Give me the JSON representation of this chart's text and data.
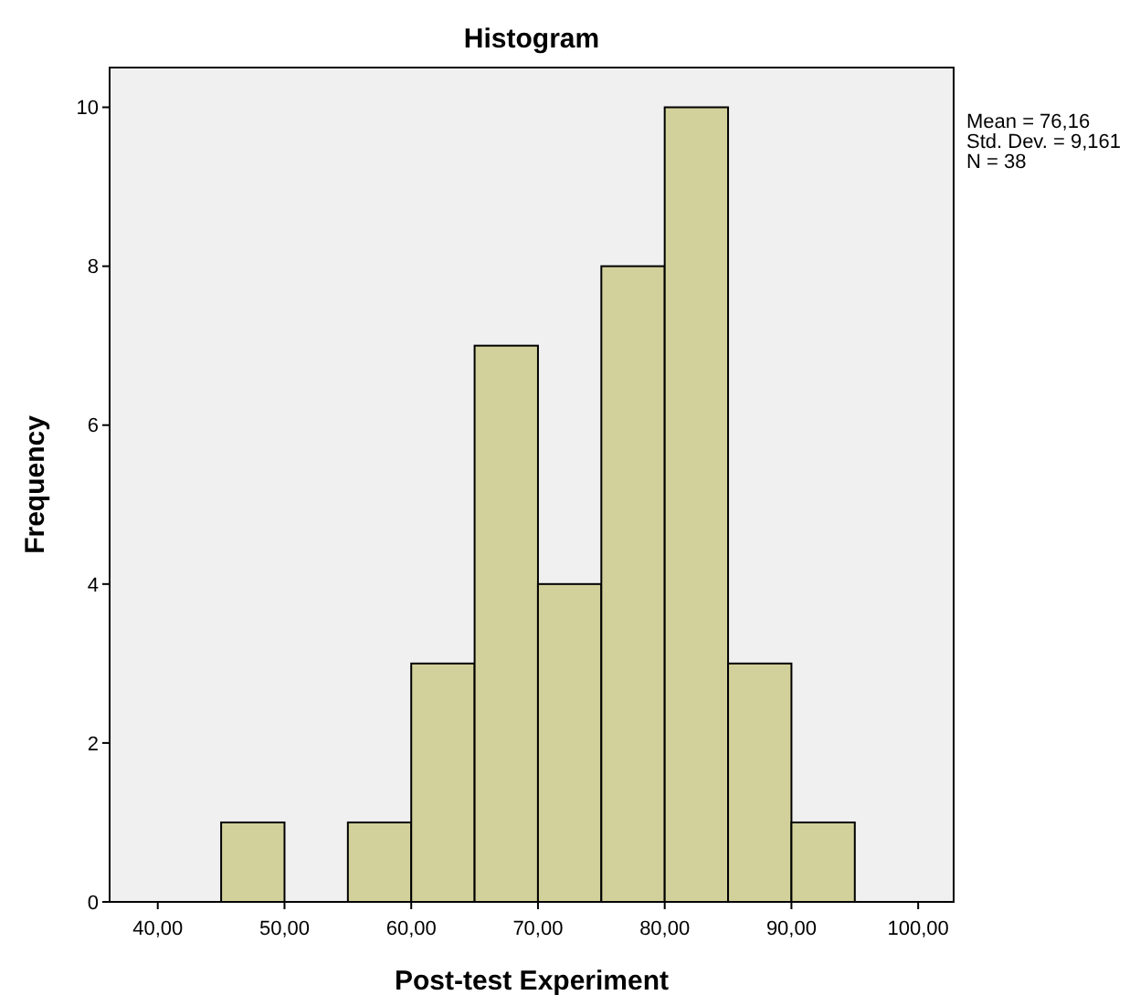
{
  "chart_data": {
    "type": "histogram",
    "title": "Histogram",
    "xlabel": "Post-test Experiment",
    "ylabel": "Frequency",
    "bins": [
      45,
      50,
      55,
      60,
      65,
      70,
      75,
      80,
      85,
      90,
      95
    ],
    "values": [
      1,
      0,
      1,
      3,
      7,
      4,
      8,
      10,
      3,
      1
    ],
    "color": "#d3d19b",
    "xlim": [
      36.2,
      102.8
    ],
    "xticks": [
      {
        "value": 40,
        "label": "40,00"
      },
      {
        "value": 50,
        "label": "50,00"
      },
      {
        "value": 60,
        "label": "60,00"
      },
      {
        "value": 70,
        "label": "70,00"
      },
      {
        "value": 80,
        "label": "80,00"
      },
      {
        "value": 90,
        "label": "90,00"
      },
      {
        "value": 100,
        "label": "100,00"
      }
    ],
    "ylim": [
      0,
      10.5
    ],
    "yticks": [
      0,
      2,
      4,
      6,
      8,
      10
    ],
    "annotations": [
      "Mean = 76,16",
      "Std. Dev. = 9,161",
      "N = 38"
    ]
  }
}
